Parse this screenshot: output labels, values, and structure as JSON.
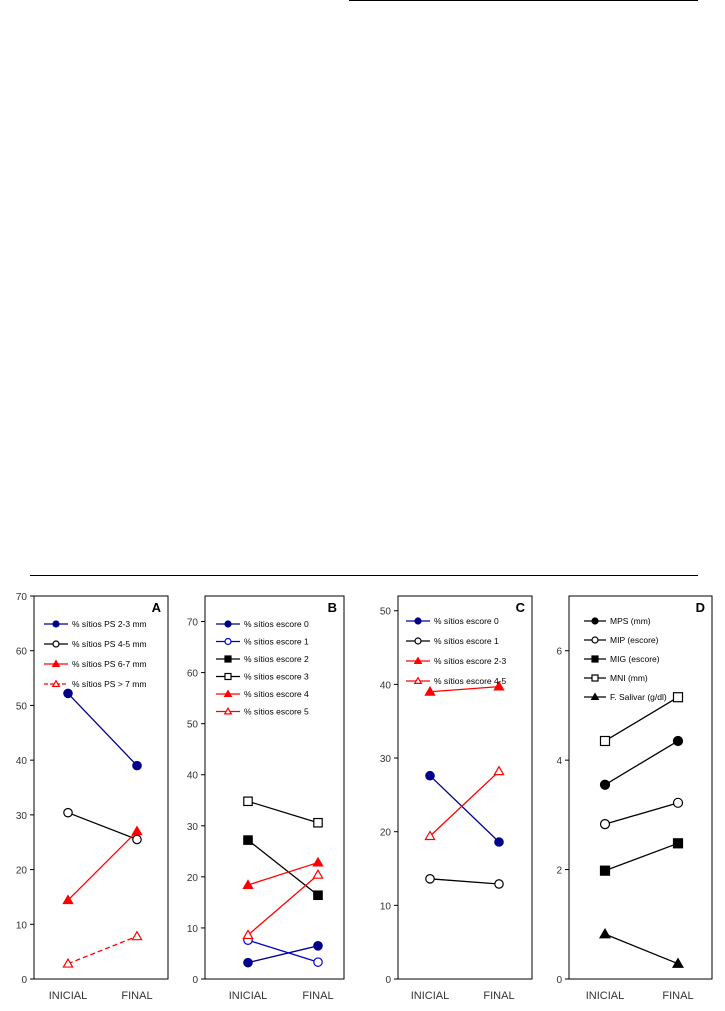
{
  "chart_data": [
    {
      "type": "line",
      "panel_label": "A",
      "categories": [
        "INICIAL",
        "FINAL"
      ],
      "ylim": [
        0,
        70
      ],
      "yticks": [
        0,
        10,
        20,
        30,
        40,
        50,
        60,
        70
      ],
      "series": [
        {
          "name": "% sítios PS 2-3 mm",
          "values": [
            52.2,
            39.0
          ],
          "color": "#00008B",
          "marker": "circle",
          "filled": true,
          "dash": false
        },
        {
          "name": "% sítios PS 4-5 mm",
          "values": [
            30.4,
            25.5
          ],
          "color": "#000000",
          "marker": "circle",
          "filled": false,
          "dash": false
        },
        {
          "name": "% sítios PS 6-7 mm",
          "values": [
            14.4,
            27.0
          ],
          "color": "#FF0000",
          "marker": "triangle",
          "filled": true,
          "dash": false
        },
        {
          "name": "% sítios PS > 7 mm",
          "values": [
            2.8,
            7.8
          ],
          "color": "#FF0000",
          "marker": "triangle",
          "filled": false,
          "dash": true
        }
      ]
    },
    {
      "type": "line",
      "panel_label": "B",
      "categories": [
        "INICIAL",
        "FINAL"
      ],
      "ylim": [
        0,
        75
      ],
      "yticks": [
        0,
        10,
        20,
        30,
        40,
        50,
        60,
        70
      ],
      "series": [
        {
          "name": "% sítios escore 0",
          "values": [
            3.2,
            6.5
          ],
          "color": "#00008B",
          "marker": "circle",
          "filled": true,
          "dash": false
        },
        {
          "name": "% sítios escore 1",
          "values": [
            7.6,
            3.3
          ],
          "color": "#0000CC",
          "marker": "circle",
          "filled": false,
          "dash": false
        },
        {
          "name": "% sítios escore 2",
          "values": [
            27.2,
            16.4
          ],
          "color": "#000000",
          "marker": "square",
          "filled": true,
          "dash": false
        },
        {
          "name": "% sítios escore 3",
          "values": [
            34.8,
            30.6
          ],
          "color": "#000000",
          "marker": "square",
          "filled": false,
          "dash": false
        },
        {
          "name": "% sítios escore 4",
          "values": [
            18.4,
            22.8
          ],
          "color": "#FF0000",
          "marker": "triangle",
          "filled": true,
          "dash": false
        },
        {
          "name": "% sítios escore 5",
          "values": [
            8.6,
            20.4
          ],
          "color": "#FF0000",
          "marker": "triangle",
          "filled": false,
          "dash": false
        }
      ]
    },
    {
      "type": "line",
      "panel_label": "C",
      "categories": [
        "INICIAL",
        "FINAL"
      ],
      "ylim": [
        0,
        52
      ],
      "yticks": [
        0,
        10,
        20,
        30,
        40,
        50
      ],
      "series": [
        {
          "name": "% sítios escore 0",
          "values": [
            27.6,
            18.6
          ],
          "color": "#00008B",
          "marker": "circle",
          "filled": true,
          "dash": false
        },
        {
          "name": "% sítios escore 1",
          "values": [
            13.6,
            12.9
          ],
          "color": "#000000",
          "marker": "circle",
          "filled": false,
          "dash": false
        },
        {
          "name": "% sítios escore 2-3",
          "values": [
            39.0,
            39.7
          ],
          "color": "#FF0000",
          "marker": "triangle",
          "filled": true,
          "dash": false
        },
        {
          "name": "% sítios escore 4-5",
          "values": [
            19.4,
            28.2
          ],
          "color": "#FF0000",
          "marker": "triangle",
          "filled": false,
          "dash": false
        }
      ]
    },
    {
      "type": "line",
      "panel_label": "D",
      "categories": [
        "INICIAL",
        "FINAL"
      ],
      "ylim": [
        0,
        7
      ],
      "yticks": [
        0,
        2,
        4,
        6
      ],
      "series": [
        {
          "name": "MPS (mm)",
          "values": [
            3.55,
            4.35
          ],
          "color": "#000000",
          "marker": "circle",
          "filled": true,
          "dash": false
        },
        {
          "name": "MIP (escore)",
          "values": [
            2.83,
            3.22
          ],
          "color": "#000000",
          "marker": "circle",
          "filled": false,
          "dash": false
        },
        {
          "name": "MIG (escore)",
          "values": [
            1.98,
            2.48
          ],
          "color": "#000000",
          "marker": "square",
          "filled": true,
          "dash": false
        },
        {
          "name": "MNI (mm)",
          "values": [
            4.35,
            5.15
          ],
          "color": "#000000",
          "marker": "square",
          "filled": false,
          "dash": false
        },
        {
          "name": "F. Salivar (g/dl)",
          "values": [
            0.82,
            0.28
          ],
          "color": "#000000",
          "marker": "triangle",
          "filled": true,
          "dash": false
        }
      ]
    }
  ]
}
